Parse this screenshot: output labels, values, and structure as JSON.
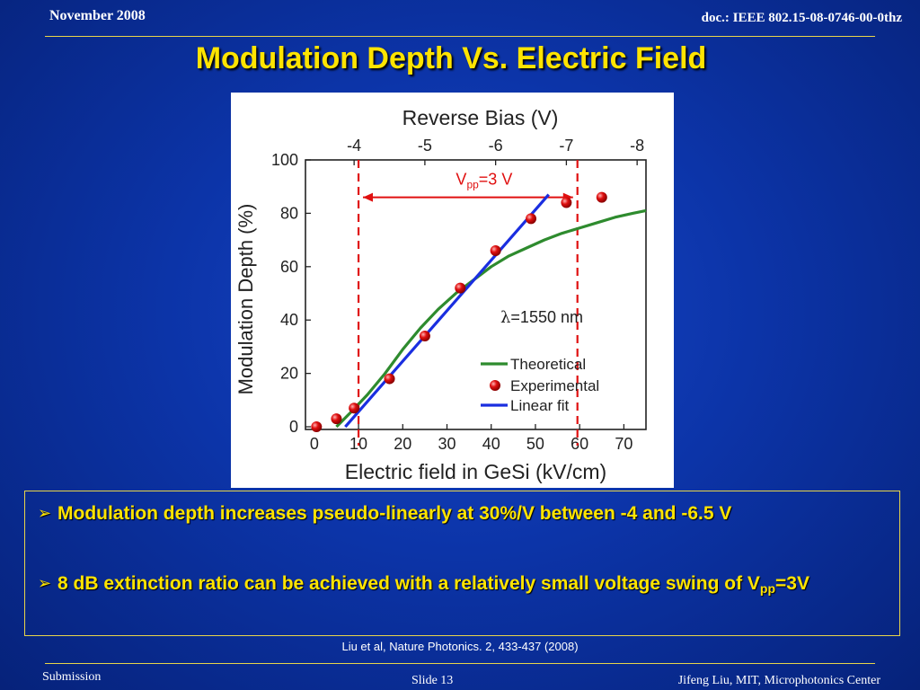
{
  "header": {
    "date": "November 2008",
    "doc_id": "doc.: IEEE 802.15-08-0746-00-0thz"
  },
  "slide": {
    "title": "Modulation Depth Vs. Electric Field"
  },
  "bullets": [
    {
      "text": "Modulation depth increases pseudo-linearly at 30%/V between -4 and -6.5 V"
    },
    {
      "text_before": "8 dB extinction ratio can be achieved with a relatively small voltage swing of V",
      "sub": "pp",
      "text_after": "=3V"
    }
  ],
  "citation": "Liu et al, Nature Photonics. 2, 433-437  (2008)",
  "footer": {
    "left": "Submission",
    "slide_number": "Slide 13",
    "right": "Jifeng Liu, MIT, Microphotonics Center"
  },
  "colors": {
    "background": "#0c34a8",
    "title": "#ffe400",
    "rule": "#e8d54a",
    "theoretical": "#2e8b2e",
    "experimental": "#e01010",
    "linear_fit": "#1a2ee0",
    "annotation": "#e01010"
  },
  "chart_data": {
    "type": "scatter",
    "xlabel": "Electric field in GeSi (kV/cm)",
    "ylabel": "Modulation Depth (%)",
    "top_axis_label": "Reverse Bias (V)",
    "xlim": [
      -2,
      75
    ],
    "ylim": [
      -1,
      100
    ],
    "x_ticks": [
      0,
      10,
      20,
      30,
      40,
      50,
      60,
      70
    ],
    "y_ticks": [
      0,
      20,
      40,
      60,
      80,
      100
    ],
    "top_ticks": [
      {
        "label": "-4",
        "x": 9
      },
      {
        "label": "-5",
        "x": 25
      },
      {
        "label": "-6",
        "x": 41
      },
      {
        "label": "-7",
        "x": 57
      },
      {
        "label": "-8",
        "x": 73
      }
    ],
    "annotation_wavelength": "=1550 nm",
    "annotation_wavelength_symbol": "λ",
    "annotation_vpp_main": "V",
    "annotation_vpp_sub": "pp",
    "annotation_vpp_rest": "=3 V",
    "dashed_lines_x": [
      10,
      59.5
    ],
    "arrow_span": {
      "x_from": 11,
      "x_to": 58.5,
      "y": 86
    },
    "legend_position": "bottom-right",
    "series": [
      {
        "name": "Theoretical",
        "kind": "line",
        "x": [
          5,
          8,
          12,
          16,
          20,
          24,
          28,
          32,
          36,
          40,
          44,
          48,
          52,
          56,
          60,
          64,
          68,
          72,
          75
        ],
        "y": [
          0,
          5,
          12,
          20,
          29,
          37,
          44,
          50,
          55,
          60,
          64,
          67,
          70,
          72.5,
          74.5,
          76.5,
          78.5,
          80,
          81
        ]
      },
      {
        "name": "Experimental",
        "kind": "scatter",
        "x": [
          0.5,
          5,
          9,
          17,
          25,
          33,
          41,
          49,
          57,
          65
        ],
        "y": [
          0,
          3,
          7,
          18,
          34,
          52,
          66,
          78,
          84,
          86
        ]
      },
      {
        "name": "Linear fit",
        "kind": "line",
        "x": [
          7,
          53
        ],
        "y": [
          0,
          87
        ]
      }
    ]
  }
}
